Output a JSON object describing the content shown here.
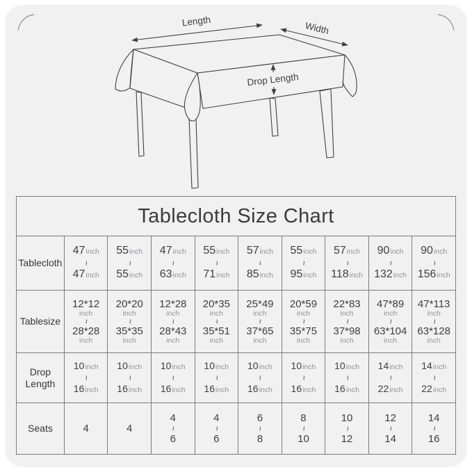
{
  "colors": {
    "page_bg": "#ffffff",
    "card_bg": "#f1f1f2",
    "line": "#3f3f3f",
    "table_border": "#7c7c7c",
    "text": "#3d3d3d",
    "muted_unit": "#929296",
    "corner_arc": "#8e8e92"
  },
  "diagram": {
    "length_label": "Length",
    "width_label": "Width",
    "drop_length_label": "Drop Length"
  },
  "chart_data": {
    "type": "table",
    "title": "Tablecloth Size Chart",
    "unit": "inch",
    "range_separator": "~",
    "row_headers": [
      "Tablecloth",
      "Tablesize",
      "Drop Length",
      "Seats"
    ],
    "rows": [
      {
        "header": "Tablecloth",
        "unit_style": "inline",
        "cells": [
          [
            "47",
            "47"
          ],
          [
            "55",
            "55"
          ],
          [
            "47",
            "63"
          ],
          [
            "55",
            "71"
          ],
          [
            "57",
            "85"
          ],
          [
            "55",
            "95"
          ],
          [
            "57",
            "118"
          ],
          [
            "90",
            "132"
          ],
          [
            "90",
            "156"
          ]
        ]
      },
      {
        "header": "Tablesize",
        "unit_style": "below",
        "cells": [
          [
            "12*12",
            "28*28"
          ],
          [
            "20*20",
            "35*35"
          ],
          [
            "12*28",
            "28*43"
          ],
          [
            "20*35",
            "35*51"
          ],
          [
            "25*49",
            "37*65"
          ],
          [
            "20*59",
            "35*75"
          ],
          [
            "22*83",
            "37*98"
          ],
          [
            "47*89",
            "63*104"
          ],
          [
            "47*113",
            "63*128"
          ]
        ]
      },
      {
        "header": "Drop Length",
        "unit_style": "inline",
        "cells": [
          [
            "10",
            "16"
          ],
          [
            "10",
            "16"
          ],
          [
            "10",
            "16"
          ],
          [
            "10",
            "16"
          ],
          [
            "10",
            "16"
          ],
          [
            "10",
            "16"
          ],
          [
            "10",
            "16"
          ],
          [
            "14",
            "22"
          ],
          [
            "14",
            "22"
          ]
        ]
      },
      {
        "header": "Seats",
        "unit_style": "none",
        "cells": [
          [
            "4"
          ],
          [
            "4"
          ],
          [
            "4",
            "6"
          ],
          [
            "4",
            "6"
          ],
          [
            "6",
            "8"
          ],
          [
            "8",
            "10"
          ],
          [
            "10",
            "12"
          ],
          [
            "12",
            "14"
          ],
          [
            "14",
            "16"
          ]
        ]
      }
    ]
  }
}
